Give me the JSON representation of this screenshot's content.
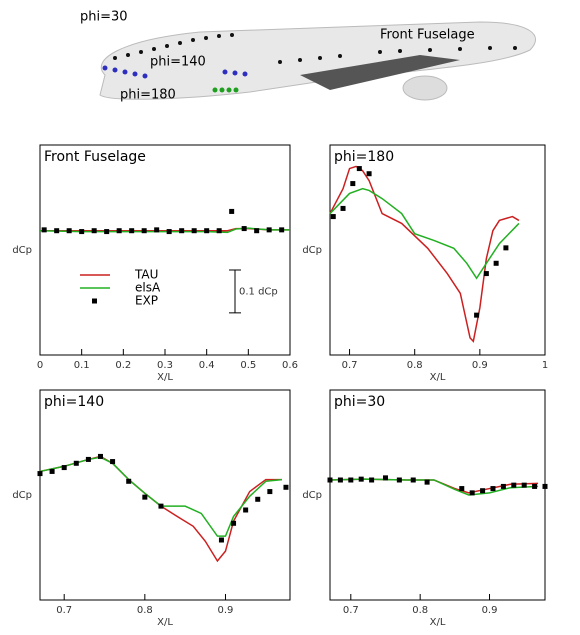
{
  "illustration": {
    "labels": [
      {
        "text": "phi=30",
        "color": "#000000"
      },
      {
        "text": "phi=140",
        "color": "#2f2fbf"
      },
      {
        "text": "phi=180",
        "color": "#1f9f1f"
      },
      {
        "text": "Front Fuselage",
        "color": "#000000"
      }
    ]
  },
  "chart_data": [
    {
      "type": "line",
      "title": "Front Fuselage",
      "xlabel": "X/L",
      "ylabel": "dCp",
      "xlim": [
        0,
        0.6
      ],
      "xticks": [
        0,
        0.1,
        0.2,
        0.3,
        0.4,
        0.5,
        0.6
      ],
      "ylim": [
        -0.29,
        0.2
      ],
      "legend": "center-left",
      "scale_bar": {
        "label": "0.1 dCp",
        "value": 0.1
      },
      "series": [
        {
          "name": "TAU",
          "color": "#cc2020",
          "style": "line",
          "x": [
            0,
            0.1,
            0.2,
            0.3,
            0.4,
            0.45,
            0.47,
            0.5,
            0.55,
            0.6
          ],
          "values": [
            0,
            0,
            0,
            0,
            0,
            0,
            0.005,
            0.005,
            0.002,
            0.002
          ]
        },
        {
          "name": "elsA",
          "color": "#22b022",
          "style": "line",
          "x": [
            0,
            0.1,
            0.2,
            0.3,
            0.4,
            0.45,
            0.47,
            0.5,
            0.55,
            0.6
          ],
          "values": [
            0,
            -0.002,
            -0.002,
            -0.002,
            -0.002,
            -0.004,
            0.004,
            0.006,
            0.002,
            0.002
          ]
        },
        {
          "name": "EXP",
          "color": "#000000",
          "style": "markers",
          "x": [
            0.01,
            0.04,
            0.07,
            0.1,
            0.13,
            0.16,
            0.19,
            0.22,
            0.25,
            0.28,
            0.31,
            0.34,
            0.37,
            0.4,
            0.43,
            0.46,
            0.49,
            0.52,
            0.55,
            0.58
          ],
          "values": [
            0.002,
            0,
            0,
            -0.002,
            0,
            -0.002,
            0,
            0,
            0,
            0.002,
            -0.002,
            0,
            0,
            0,
            0,
            0.045,
            0.005,
            0,
            0.002,
            0.002
          ]
        }
      ]
    },
    {
      "type": "line",
      "title": "phi=180",
      "xlabel": "X/L",
      "ylabel": "dCp",
      "xlim": [
        0.67,
        1.0
      ],
      "xticks": [
        0.7,
        0.8,
        0.9,
        1
      ],
      "ylim": [
        -0.33,
        0.16
      ],
      "series": [
        {
          "name": "TAU",
          "color": "#cc2020",
          "style": "line",
          "x": [
            0.67,
            0.69,
            0.7,
            0.71,
            0.72,
            0.73,
            0.75,
            0.78,
            0.82,
            0.85,
            0.87,
            0.885,
            0.89,
            0.9,
            0.91,
            0.92,
            0.93,
            0.95,
            0.96
          ],
          "values": [
            0,
            0.058,
            0.105,
            0.11,
            0.1,
            0.077,
            0,
            -0.023,
            -0.081,
            -0.14,
            -0.186,
            -0.29,
            -0.298,
            -0.22,
            -0.105,
            -0.04,
            -0.016,
            -0.007,
            -0.016
          ]
        },
        {
          "name": "elsA",
          "color": "#22b022",
          "style": "line",
          "x": [
            0.67,
            0.7,
            0.72,
            0.73,
            0.75,
            0.78,
            0.8,
            0.83,
            0.86,
            0.88,
            0.895,
            0.91,
            0.93,
            0.96
          ],
          "values": [
            0,
            0.047,
            0.058,
            0.054,
            0.035,
            0,
            -0.047,
            -0.063,
            -0.081,
            -0.116,
            -0.151,
            -0.116,
            -0.07,
            -0.023
          ]
        },
        {
          "name": "EXP",
          "color": "#000000",
          "style": "markers",
          "x": [
            0.675,
            0.69,
            0.705,
            0.715,
            0.73,
            0.895,
            0.91,
            0.925,
            0.94
          ],
          "values": [
            -0.007,
            0.012,
            0.07,
            0.105,
            0.093,
            -0.237,
            -0.14,
            -0.116,
            -0.08
          ]
        }
      ]
    },
    {
      "type": "line",
      "title": "phi=140",
      "xlabel": "X/L",
      "ylabel": "dCp",
      "xlim": [
        0.67,
        0.98
      ],
      "xticks": [
        0.7,
        0.8,
        0.9
      ],
      "ylim": [
        -0.3,
        0.19
      ],
      "series": [
        {
          "name": "TAU",
          "color": "#cc2020",
          "style": "line",
          "x": [
            0.67,
            0.7,
            0.73,
            0.745,
            0.76,
            0.78,
            0.8,
            0.82,
            0.84,
            0.86,
            0.875,
            0.89,
            0.9,
            0.91,
            0.93,
            0.95,
            0.97
          ],
          "values": [
            0,
            0.012,
            0.028,
            0.035,
            0.019,
            -0.019,
            -0.051,
            -0.081,
            -0.105,
            -0.128,
            -0.163,
            -0.209,
            -0.186,
            -0.116,
            -0.047,
            -0.019,
            -0.019
          ]
        },
        {
          "name": "elsA",
          "color": "#22b022",
          "style": "line",
          "x": [
            0.67,
            0.7,
            0.73,
            0.745,
            0.76,
            0.78,
            0.8,
            0.82,
            0.85,
            0.87,
            0.89,
            0.9,
            0.91,
            0.93,
            0.95,
            0.97
          ],
          "values": [
            0,
            0.012,
            0.028,
            0.033,
            0.019,
            -0.019,
            -0.051,
            -0.081,
            -0.081,
            -0.098,
            -0.151,
            -0.151,
            -0.105,
            -0.058,
            -0.023,
            -0.019
          ]
        },
        {
          "name": "EXP",
          "color": "#000000",
          "style": "markers",
          "x": [
            0.67,
            0.685,
            0.7,
            0.715,
            0.73,
            0.745,
            0.76,
            0.78,
            0.8,
            0.82,
            0.895,
            0.91,
            0.925,
            0.94,
            0.955,
            0.975
          ],
          "values": [
            -0.005,
            0,
            0.009,
            0.019,
            0.028,
            0.035,
            0.023,
            -0.023,
            -0.06,
            -0.081,
            -0.16,
            -0.121,
            -0.09,
            -0.065,
            -0.047,
            -0.037
          ]
        }
      ]
    },
    {
      "type": "line",
      "title": "phi=30",
      "xlabel": "X/L",
      "ylabel": "dCp",
      "xlim": [
        0.67,
        0.98
      ],
      "xticks": [
        0.7,
        0.8,
        0.9
      ],
      "ylim": [
        -0.28,
        0.21
      ],
      "series": [
        {
          "name": "TAU",
          "color": "#cc2020",
          "style": "line",
          "x": [
            0.67,
            0.72,
            0.78,
            0.82,
            0.85,
            0.87,
            0.9,
            0.93,
            0.97
          ],
          "values": [
            0,
            0.002,
            0,
            0,
            -0.02,
            -0.03,
            -0.02,
            -0.01,
            -0.008
          ]
        },
        {
          "name": "elsA",
          "color": "#22b022",
          "style": "line",
          "x": [
            0.67,
            0.72,
            0.78,
            0.82,
            0.85,
            0.87,
            0.9,
            0.93,
            0.97
          ],
          "values": [
            0,
            0.002,
            0,
            0,
            -0.022,
            -0.035,
            -0.03,
            -0.018,
            -0.015
          ]
        },
        {
          "name": "EXP",
          "color": "#000000",
          "style": "markers",
          "x": [
            0.67,
            0.685,
            0.7,
            0.715,
            0.73,
            0.75,
            0.77,
            0.79,
            0.81,
            0.86,
            0.875,
            0.89,
            0.905,
            0.92,
            0.935,
            0.95,
            0.965,
            0.98
          ],
          "values": [
            0,
            0,
            0,
            0.002,
            0,
            0.005,
            0,
            0,
            -0.005,
            -0.02,
            -0.03,
            -0.025,
            -0.02,
            -0.015,
            -0.012,
            -0.012,
            -0.015,
            -0.015
          ]
        }
      ]
    }
  ]
}
